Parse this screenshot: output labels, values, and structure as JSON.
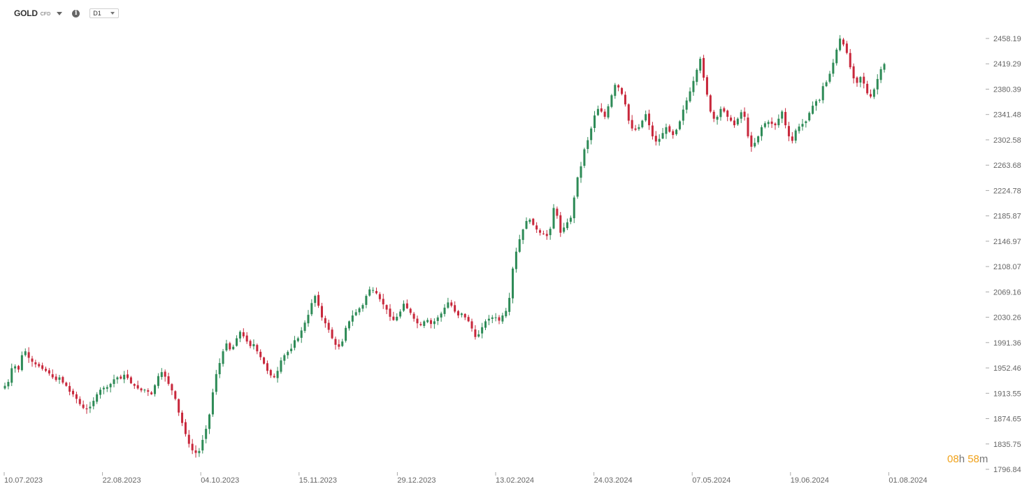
{
  "toolbar": {
    "symbol": "GOLD",
    "symbol_type": "CFD",
    "info_icon": "info-icon",
    "timeframe": "D1"
  },
  "countdown": {
    "hours": "08",
    "hours_unit": "h",
    "minutes": "58",
    "minutes_unit": "m"
  },
  "colors": {
    "up": "#2e8b57",
    "down": "#c8283c",
    "axis_text": "#666666",
    "countdown_accent": "#f0a21b"
  },
  "chart_data": {
    "type": "candlestick",
    "y_ticks": [
      "2458.19",
      "2419.29",
      "2380.39",
      "2341.48",
      "2302.58",
      "2263.68",
      "2224.78",
      "2185.87",
      "2146.97",
      "2108.07",
      "2069.16",
      "2030.26",
      "1991.36",
      "1952.46",
      "1913.55",
      "1874.65",
      "1835.75",
      "1796.84"
    ],
    "x_ticks": [
      "10.07.2023",
      "22.08.2023",
      "04.10.2023",
      "15.11.2023",
      "29.12.2023",
      "13.02.2024",
      "24.03.2024",
      "07.05.2024",
      "19.06.2024",
      "01.08.2024"
    ],
    "ylim": [
      1796.84,
      2458.19
    ],
    "close_path": [
      1925,
      1931,
      1952,
      1955,
      1950,
      1972,
      1978,
      1968,
      1962,
      1958,
      1955,
      1951,
      1948,
      1944,
      1938,
      1934,
      1938,
      1930,
      1925,
      1916,
      1912,
      1905,
      1897,
      1891,
      1889,
      1893,
      1902,
      1912,
      1919,
      1922,
      1923,
      1928,
      1935,
      1938,
      1936,
      1942,
      1937,
      1929,
      1925,
      1921,
      1918,
      1919,
      1916,
      1912,
      1926,
      1940,
      1946,
      1939,
      1928,
      1918,
      1905,
      1884,
      1868,
      1851,
      1836,
      1826,
      1822,
      1825,
      1842,
      1859,
      1881,
      1915,
      1943,
      1960,
      1978,
      1990,
      1981,
      1985,
      1998,
      2008,
      2001,
      1993,
      1986,
      1989,
      1978,
      1969,
      1959,
      1948,
      1941,
      1938,
      1948,
      1964,
      1972,
      1977,
      1982,
      1995,
      1998,
      2010,
      2022,
      2034,
      2052,
      2063,
      2048,
      2030,
      2021,
      2011,
      1998,
      1988,
      1985,
      1993,
      2014,
      2024,
      2033,
      2038,
      2044,
      2049,
      2063,
      2073,
      2072,
      2067,
      2058,
      2050,
      2042,
      2031,
      2026,
      2031,
      2039,
      2051,
      2044,
      2037,
      2028,
      2021,
      2018,
      2024,
      2026,
      2020,
      2024,
      2030,
      2036,
      2045,
      2053,
      2048,
      2039,
      2033,
      2036,
      2030,
      2024,
      2013,
      2000,
      2004,
      2015,
      2024,
      2028,
      2030,
      2030,
      2025,
      2033,
      2040,
      2060,
      2105,
      2131,
      2150,
      2165,
      2178,
      2180,
      2172,
      2165,
      2160,
      2158,
      2155,
      2166,
      2198,
      2186,
      2160,
      2168,
      2176,
      2183,
      2214,
      2245,
      2262,
      2288,
      2302,
      2320,
      2340,
      2350,
      2346,
      2338,
      2354,
      2371,
      2387,
      2383,
      2373,
      2357,
      2332,
      2320,
      2318,
      2322,
      2332,
      2342,
      2325,
      2308,
      2300,
      2304,
      2313,
      2322,
      2315,
      2310,
      2318,
      2331,
      2349,
      2363,
      2377,
      2393,
      2410,
      2427,
      2398,
      2372,
      2346,
      2335,
      2338,
      2350,
      2346,
      2338,
      2332,
      2325,
      2335,
      2345,
      2338,
      2308,
      2292,
      2298,
      2308,
      2322,
      2328,
      2330,
      2327,
      2325,
      2335,
      2346,
      2325,
      2308,
      2301,
      2317,
      2323,
      2327,
      2331,
      2344,
      2355,
      2362,
      2364,
      2385,
      2391,
      2404,
      2421,
      2441,
      2458,
      2449,
      2436,
      2414,
      2397,
      2390,
      2399,
      2389,
      2374,
      2369,
      2380,
      2396,
      2411,
      2419
    ]
  }
}
